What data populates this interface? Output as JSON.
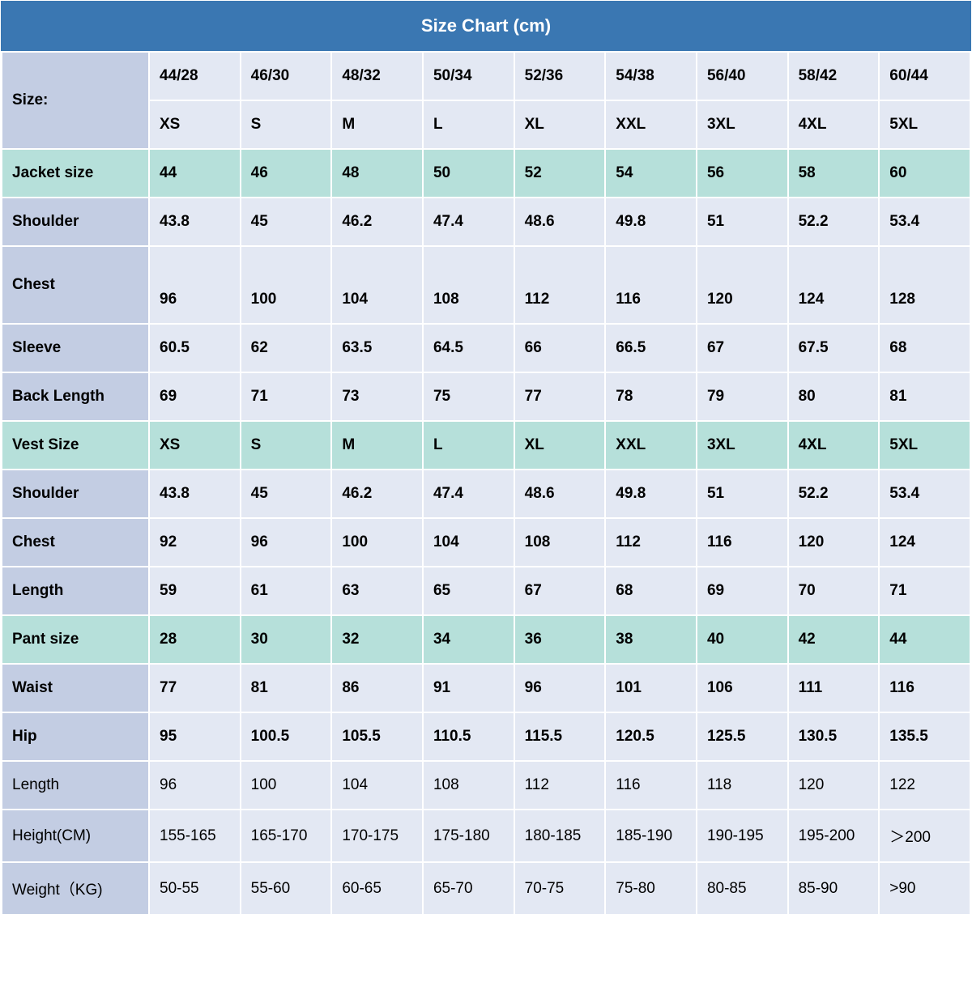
{
  "title": "Size Chart (cm)",
  "colors": {
    "header_bg": "#3a77b2",
    "header_text": "#ffffff",
    "band_a": "#c3cde3",
    "band_b": "#e3e8f3",
    "teal": "#b6e0da",
    "border": "#ffffff",
    "text": "#000000"
  },
  "layout": {
    "label_col_width": 182,
    "data_col_count": 9,
    "title_fontsize": 22,
    "cell_fontsize": 19,
    "cell_font_weight": "bold"
  },
  "rows": [
    {
      "label": "Size:",
      "rowspan": 2,
      "color": "band_a",
      "data_color": "band_b",
      "cells": [
        "44/28",
        "46/30",
        "48/32",
        "50/34",
        "52/36",
        "54/38",
        "56/40",
        "58/42",
        "60/44"
      ]
    },
    {
      "label": null,
      "color": "band_a",
      "data_color": "band_b",
      "cells": [
        "XS",
        "S",
        "M",
        "L",
        "XL",
        "XXL",
        "3XL",
        "4XL",
        "5XL"
      ]
    },
    {
      "label": "Jacket size",
      "color": "teal",
      "data_color": "teal",
      "cells": [
        "44",
        "46",
        "48",
        "50",
        "52",
        "54",
        "56",
        "58",
        "60"
      ]
    },
    {
      "label": "Shoulder",
      "color": "band_a",
      "data_color": "band_b",
      "cells": [
        "43.8",
        "45",
        "46.2",
        "47.4",
        "48.6",
        "49.8",
        "51",
        "52.2",
        "53.4"
      ]
    },
    {
      "label": "Chest",
      "color": "band_a",
      "data_color": "band_b",
      "tall": true,
      "cells": [
        "96",
        "100",
        "104",
        "108",
        "112",
        "116",
        "120",
        "124",
        "128"
      ]
    },
    {
      "label": "Sleeve",
      "color": "band_a",
      "data_color": "band_b",
      "cells": [
        "60.5",
        "62",
        "63.5",
        "64.5",
        "66",
        "66.5",
        "67",
        "67.5",
        "68"
      ]
    },
    {
      "label": "Back Length",
      "color": "band_a",
      "data_color": "band_b",
      "cells": [
        "69",
        "71",
        "73",
        "75",
        "77",
        "78",
        "79",
        "80",
        "81"
      ]
    },
    {
      "label": "Vest Size",
      "color": "teal",
      "data_color": "teal",
      "cells": [
        "XS",
        "S",
        "M",
        "L",
        "XL",
        "XXL",
        "3XL",
        "4XL",
        "5XL"
      ]
    },
    {
      "label": "Shoulder",
      "color": "band_a",
      "data_color": "band_b",
      "cells": [
        "43.8",
        "45",
        "46.2",
        "47.4",
        "48.6",
        "49.8",
        "51",
        "52.2",
        "53.4"
      ]
    },
    {
      "label": "Chest",
      "color": "band_a",
      "data_color": "band_b",
      "cells": [
        "92",
        "96",
        "100",
        "104",
        "108",
        "112",
        "116",
        "120",
        "124"
      ]
    },
    {
      "label": "Length",
      "color": "band_a",
      "data_color": "band_b",
      "cells": [
        "59",
        "61",
        "63",
        "65",
        "67",
        "68",
        "69",
        "70",
        "71"
      ]
    },
    {
      "label": "Pant size",
      "color": "teal",
      "data_color": "teal",
      "cells": [
        "28",
        "30",
        "32",
        "34",
        "36",
        "38",
        "40",
        "42",
        "44"
      ]
    },
    {
      "label": "Waist",
      "color": "band_a",
      "data_color": "band_b",
      "cells": [
        "77",
        "81",
        "86",
        "91",
        "96",
        "101",
        "106",
        "111",
        "116"
      ]
    },
    {
      "label": "Hip",
      "color": "band_a",
      "data_color": "band_b",
      "cells": [
        "95",
        "100.5",
        "105.5",
        "110.5",
        "115.5",
        "120.5",
        "125.5",
        "130.5",
        "135.5"
      ]
    },
    {
      "label": "Length",
      "color": "band_a",
      "data_color": "band_b",
      "light_label": true,
      "cells": [
        "96",
        "100",
        "104",
        "108",
        "112",
        "116",
        "118",
        "120",
        "122"
      ]
    },
    {
      "label": "Height(CM)",
      "color": "band_a",
      "data_color": "band_b",
      "light_label": true,
      "cells": [
        "155-165",
        "165-170",
        "170-175",
        "175-180",
        "180-185",
        "185-190",
        "190-195",
        "195-200",
        "＞200"
      ]
    },
    {
      "label": "Weight（KG)",
      "color": "band_a",
      "data_color": "band_b",
      "light_label": true,
      "cells": [
        "50-55",
        "55-60",
        "60-65",
        "65-70",
        "70-75",
        "75-80",
        "80-85",
        "85-90",
        ">90"
      ]
    }
  ]
}
